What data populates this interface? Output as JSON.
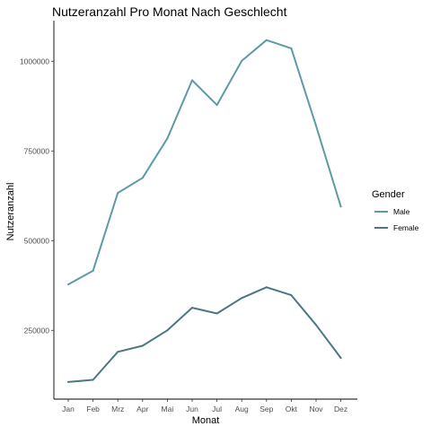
{
  "chart_data": {
    "type": "line",
    "title": "Nutzeranzahl Pro Monat Nach Geschlecht",
    "xlabel": "Monat",
    "ylabel": "Nutzeranzahl",
    "categories": [
      "Jan",
      "Feb",
      "Mrz",
      "Apr",
      "Mai",
      "Jun",
      "Jul",
      "Aug",
      "Sep",
      "Okt",
      "Nov",
      "Dez"
    ],
    "ylim": [
      100000,
      1100000
    ],
    "yticks": [
      250000,
      500000,
      750000,
      1000000
    ],
    "ytick_labels": [
      "250000",
      "500000",
      "750000",
      "1000000"
    ],
    "grid": false,
    "legend": {
      "title": "Gender",
      "placement": "right"
    },
    "series": [
      {
        "name": "Male",
        "color": "#5e9aa5",
        "values": [
          378000,
          416000,
          633000,
          675000,
          785000,
          947000,
          878000,
          1001000,
          1059000,
          1036000,
          820000,
          595000
        ]
      },
      {
        "name": "Female",
        "color": "#4a7782",
        "values": [
          106000,
          112000,
          190000,
          207000,
          250000,
          313000,
          297000,
          340000,
          370000,
          348000,
          265000,
          173000
        ]
      }
    ]
  }
}
